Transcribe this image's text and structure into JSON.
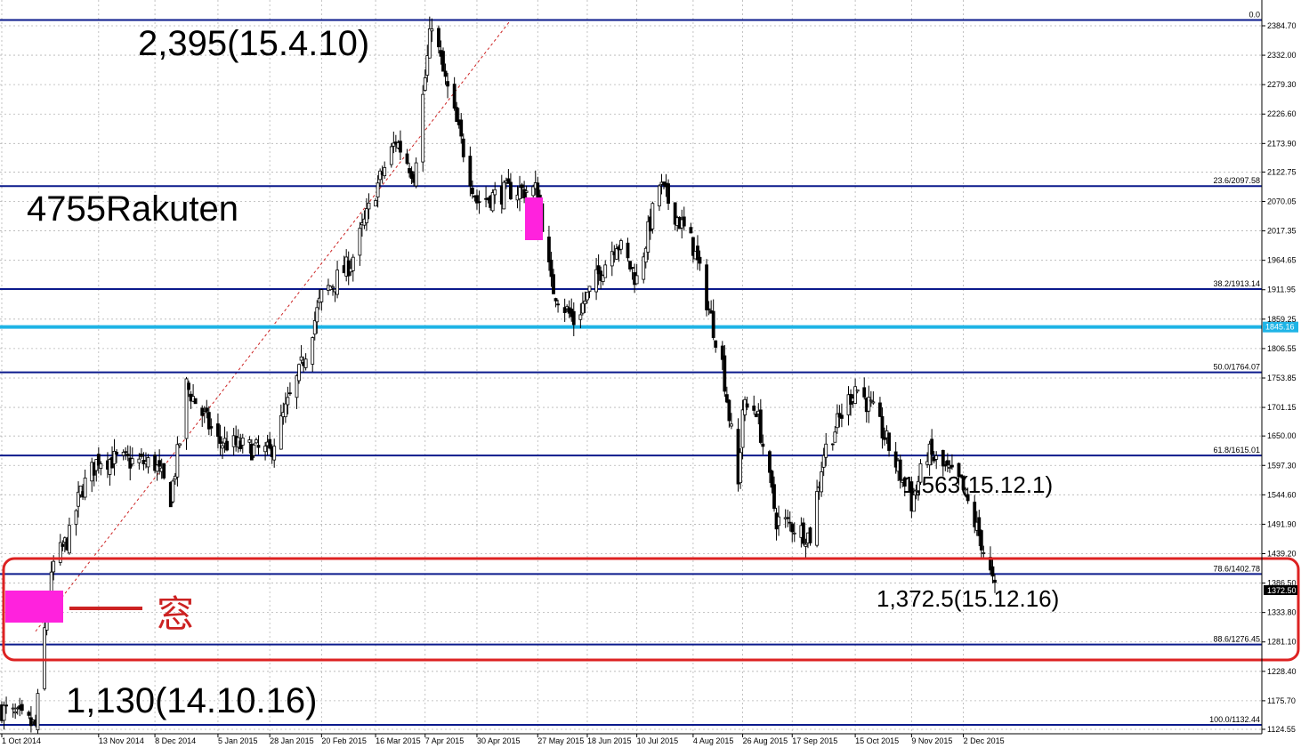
{
  "annotations": {
    "ticker": "4755Rakuten",
    "high": "2,395(15.4.10)",
    "low": "1,130(14.10.16)",
    "dec1": "1,563(15.12.1)",
    "dec16": "1,372.5(15.12.16)",
    "gap_label": "窓"
  },
  "chart_data": {
    "type": "candlestick",
    "title": "",
    "y_range": [
      1124.55,
      2395
    ],
    "y_ticks": [
      "2384.70",
      "2332.00",
      "2279.30",
      "2226.60",
      "2173.90",
      "2122.75",
      "2070.05",
      "2017.35",
      "1964.65",
      "1911.95",
      "1859.25",
      "1806.55",
      "1753.85",
      "1701.15",
      "1650.00",
      "1597.30",
      "1544.60",
      "1491.90",
      "1439.20",
      "1386.50",
      "1333.80",
      "1281.10",
      "1228.40",
      "1175.70",
      "1124.55"
    ],
    "x_ticks": [
      "1 Oct 2014",
      "13 Nov 2014",
      "8 Dec 2014",
      "5 Jan 2015",
      "28 Jan 2015",
      "20 Feb 2015",
      "16 Mar 2015",
      "7 Apr 2015",
      "30 Apr 2015",
      "27 May 2015",
      "18 Jun 2015",
      "10 Jul 2015",
      "4 Aug 2015",
      "26 Aug 2015",
      "17 Sep 2015",
      "15 Oct 2015",
      "9 Nov 2015",
      "2 Dec 2015"
    ],
    "fib_levels": [
      {
        "label": "0.0",
        "value": 2395,
        "color": "#0b1a8c"
      },
      {
        "label": "23.6/2097.58",
        "value": 2097.58,
        "color": "#0b1a8c"
      },
      {
        "label": "38.2/1913.14",
        "value": 1913.14,
        "color": "#0b1a8c"
      },
      {
        "label": "50.0/1764.07",
        "value": 1764.07,
        "color": "#0b1a8c"
      },
      {
        "label": "61.8/1615.01",
        "value": 1615.01,
        "color": "#0b1a8c"
      },
      {
        "label": "78.6/1402.78",
        "value": 1402.78,
        "color": "#0b1a8c"
      },
      {
        "label": "88.6/1276.45",
        "value": 1276.45,
        "color": "#0b1a8c"
      },
      {
        "label": "100.0/1132.44",
        "value": 1132.44,
        "color": "#0b1a8c"
      }
    ],
    "horizontal_line": {
      "label": "1845.16",
      "value": 1845.16,
      "color": "#1eb4e6"
    },
    "current_price_label": "1372.50",
    "anchors": [
      {
        "x": "1 Oct 2014",
        "close": 1160
      },
      {
        "x": "16 Oct 2014",
        "close": 1130
      },
      {
        "x": "20 Oct 2014",
        "close": 1300
      },
      {
        "x": "24 Oct 2014",
        "close": 1420
      },
      {
        "x": "31 Oct 2014",
        "close": 1470
      },
      {
        "x": "5 Nov 2014",
        "close": 1550
      },
      {
        "x": "13 Nov 2014",
        "close": 1610
      },
      {
        "x": "8 Dec 2014",
        "close": 1600
      },
      {
        "x": "15 Dec 2014",
        "close": 1540
      },
      {
        "x": "19 Dec 2014",
        "close": 1640
      },
      {
        "x": "22 Dec 2014",
        "close": 1740
      },
      {
        "x": "5 Jan 2015",
        "close": 1640
      },
      {
        "x": "28 Jan 2015",
        "close": 1620
      },
      {
        "x": "10 Feb 2015",
        "close": 1760
      },
      {
        "x": "20 Feb 2015",
        "close": 1900
      },
      {
        "x": "5 Mar 2015",
        "close": 1960
      },
      {
        "x": "16 Mar 2015",
        "close": 2090
      },
      {
        "x": "25 Mar 2015",
        "close": 2180
      },
      {
        "x": "2 Apr 2015",
        "close": 2120
      },
      {
        "x": "10 Apr 2015",
        "close": 2395
      },
      {
        "x": "15 Apr 2015",
        "close": 2300
      },
      {
        "x": "30 Apr 2015",
        "close": 2070
      },
      {
        "x": "15 May 2015",
        "close": 2090
      },
      {
        "x": "27 May 2015",
        "close": 2090
      },
      {
        "x": "2 Jun 2015",
        "close": 1920
      },
      {
        "x": "12 Jun 2015",
        "close": 1855
      },
      {
        "x": "18 Jun 2015",
        "close": 1900
      },
      {
        "x": "1 Jul 2015",
        "close": 2000
      },
      {
        "x": "10 Jul 2015",
        "close": 1930
      },
      {
        "x": "20 Jul 2015",
        "close": 2100
      },
      {
        "x": "4 Aug 2015",
        "close": 1990
      },
      {
        "x": "17 Aug 2015",
        "close": 1780
      },
      {
        "x": "24 Aug 2015",
        "close": 1560
      },
      {
        "x": "26 Aug 2015",
        "close": 1700
      },
      {
        "x": "1 Sep 2015",
        "close": 1700
      },
      {
        "x": "10 Sep 2015",
        "close": 1500
      },
      {
        "x": "17 Sep 2015",
        "close": 1490
      },
      {
        "x": "25 Sep 2015",
        "close": 1470
      },
      {
        "x": "1 Oct 2015",
        "close": 1620
      },
      {
        "x": "15 Oct 2015",
        "close": 1740
      },
      {
        "x": "22 Oct 2015",
        "close": 1700
      },
      {
        "x": "29 Oct 2015",
        "close": 1640
      },
      {
        "x": "9 Nov 2015",
        "close": 1530
      },
      {
        "x": "16 Nov 2015",
        "close": 1620
      },
      {
        "x": "1 Dec 2015",
        "close": 1563
      },
      {
        "x": "10 Dec 2015",
        "close": 1460
      },
      {
        "x": "16 Dec 2015",
        "close": 1372.5
      }
    ]
  }
}
